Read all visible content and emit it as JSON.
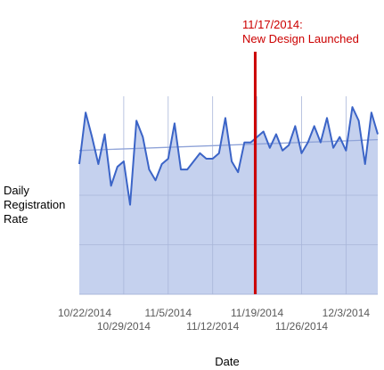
{
  "chart_data": {
    "type": "area",
    "xlabel": "Date",
    "ylabel_lines": [
      "Daily",
      "Registration",
      "Rate"
    ],
    "x_tick_labels": [
      "10/22/2014",
      "10/29/2014",
      "11/5/2014",
      "11/12/2014",
      "11/19/2014",
      "11/26/2014",
      "12/3/2014"
    ],
    "x_tick_day_index": [
      0,
      7,
      14,
      21,
      28,
      35,
      42
    ],
    "x_start_date": "10/21/2014",
    "x": [
      "10/21/2014",
      "10/22/2014",
      "10/23/2014",
      "10/24/2014",
      "10/25/2014",
      "10/26/2014",
      "10/27/2014",
      "10/28/2014",
      "10/29/2014",
      "10/30/2014",
      "10/31/2014",
      "11/1/2014",
      "11/2/2014",
      "11/3/2014",
      "11/4/2014",
      "11/5/2014",
      "11/6/2014",
      "11/7/2014",
      "11/8/2014",
      "11/9/2014",
      "11/10/2014",
      "11/11/2014",
      "11/12/2014",
      "11/13/2014",
      "11/14/2014",
      "11/15/2014",
      "11/16/2014",
      "11/17/2014",
      "11/18/2014",
      "11/19/2014",
      "11/20/2014",
      "11/21/2014",
      "11/22/2014",
      "11/23/2014",
      "11/24/2014",
      "11/25/2014",
      "11/26/2014",
      "11/27/2014",
      "11/28/2014",
      "11/29/2014",
      "11/30/2014",
      "12/1/2014",
      "12/2/2014",
      "12/3/2014",
      "12/4/2014",
      "12/5/2014",
      "12/6/2014",
      "12/7/2014"
    ],
    "series": [
      {
        "values": [
          3.5,
          5.4,
          4.5,
          3.5,
          4.6,
          2.7,
          3.4,
          3.6,
          2.0,
          5.1,
          4.5,
          3.3,
          2.9,
          3.5,
          3.7,
          5.0,
          3.3,
          3.3,
          3.6,
          3.9,
          3.7,
          3.7,
          3.9,
          5.2,
          3.6,
          3.2,
          4.3,
          4.3,
          4.5,
          4.7,
          4.1,
          4.6,
          4.0,
          4.2,
          4.9,
          3.9,
          4.3,
          4.9,
          4.3,
          5.2,
          4.1,
          4.5,
          4.0,
          5.6,
          5.1,
          3.5,
          5.4,
          4.6
        ],
        "trend": [
          4.0,
          4.4
        ]
      }
    ],
    "ylim": [
      -1.3,
      6.0
    ],
    "annotation": {
      "date": "11/17/2014",
      "day_index": 27,
      "lines": [
        "11/17/2014:",
        "New Design Launched"
      ]
    },
    "grid": true,
    "legend": "none"
  },
  "colors": {
    "line": "#3b64c7",
    "fill": "#c5d1ee",
    "grid": "#a9b6d9",
    "annotation": "#cc0000",
    "trend": "#8fa3d8"
  }
}
